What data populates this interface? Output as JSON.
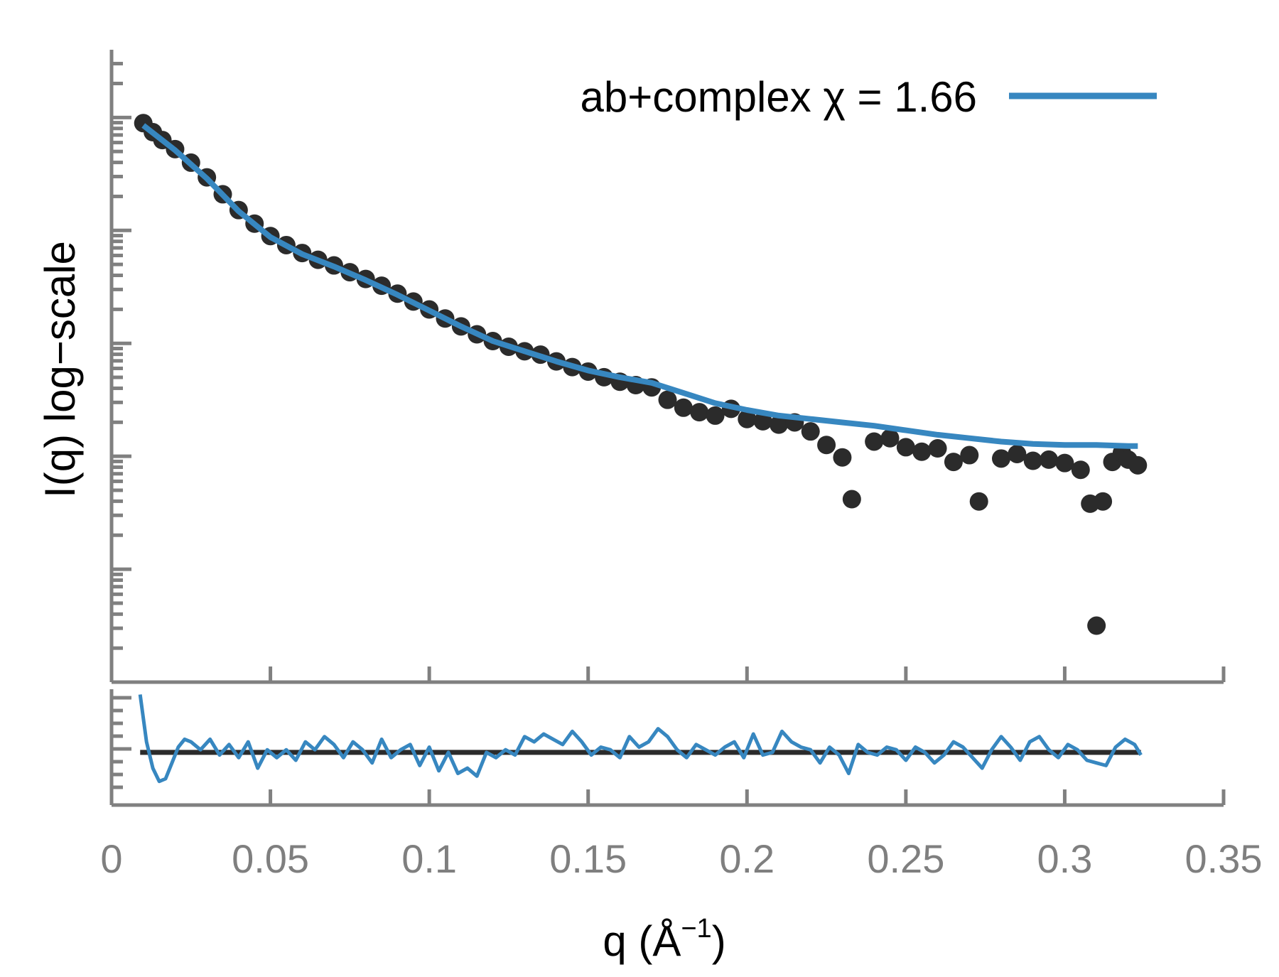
{
  "chart_data": {
    "type": "scatter",
    "title": "",
    "xlabel": "q (Å",
    "xlabel_sup": "−1",
    "xlabel_close": ")",
    "ylabel": "I(q) log−scale",
    "xlim": [
      0,
      0.35
    ],
    "x_ticks": [
      "0",
      "0.05",
      "0.1",
      "0.15",
      "0.2",
      "0.25",
      "0.3",
      "0.35"
    ],
    "x_tick_values": [
      0,
      0.05,
      0.1,
      0.15,
      0.2,
      0.25,
      0.3,
      0.35
    ],
    "y_scale": "log",
    "y_tick_labels_shown": false,
    "legend": {
      "position": "top-right",
      "label": "ab+complex χ = 1.66",
      "color": "#3787c0"
    },
    "colors": {
      "data_points": "#2b2b2b",
      "fit_line": "#3787c0",
      "axes": "#808080",
      "zero_line": "#2b2b2b"
    },
    "panels": [
      {
        "name": "intensity",
        "y_ylim_decades": [
          0,
          5.6
        ],
        "series": [
          {
            "name": "data",
            "kind": "points",
            "x": [
              0.01,
              0.013,
              0.016,
              0.02,
              0.025,
              0.03,
              0.035,
              0.04,
              0.045,
              0.05,
              0.055,
              0.06,
              0.065,
              0.07,
              0.075,
              0.08,
              0.085,
              0.09,
              0.095,
              0.1,
              0.105,
              0.11,
              0.115,
              0.12,
              0.125,
              0.13,
              0.135,
              0.14,
              0.145,
              0.15,
              0.155,
              0.16,
              0.165,
              0.17,
              0.175,
              0.18,
              0.185,
              0.19,
              0.195,
              0.2,
              0.205,
              0.21,
              0.215,
              0.22,
              0.225,
              0.23,
              0.233,
              0.24,
              0.245,
              0.25,
              0.255,
              0.26,
              0.265,
              0.27,
              0.273,
              0.28,
              0.285,
              0.29,
              0.295,
              0.3,
              0.305,
              0.308,
              0.31,
              0.312,
              0.315,
              0.318,
              0.32,
              0.323
            ],
            "y_decades": [
              4.95,
              4.87,
              4.8,
              4.72,
              4.6,
              4.47,
              4.32,
              4.18,
              4.06,
              3.95,
              3.87,
              3.8,
              3.74,
              3.69,
              3.63,
              3.57,
              3.51,
              3.44,
              3.37,
              3.3,
              3.22,
              3.15,
              3.08,
              3.02,
              2.97,
              2.93,
              2.9,
              2.84,
              2.79,
              2.75,
              2.7,
              2.66,
              2.63,
              2.61,
              2.5,
              2.43,
              2.39,
              2.36,
              2.42,
              2.33,
              2.31,
              2.28,
              2.3,
              2.22,
              2.1,
              1.99,
              1.62,
              2.13,
              2.16,
              2.08,
              2.04,
              2.07,
              1.95,
              2.01,
              1.6,
              1.98,
              2.02,
              1.96,
              1.97,
              1.94,
              1.88,
              1.58,
              0.5,
              1.6,
              1.95,
              2.03,
              1.97,
              1.92
            ]
          },
          {
            "name": "ab+complex χ = 1.66",
            "kind": "line",
            "x": [
              0.01,
              0.02,
              0.03,
              0.04,
              0.05,
              0.06,
              0.07,
              0.08,
              0.09,
              0.1,
              0.11,
              0.12,
              0.13,
              0.14,
              0.15,
              0.16,
              0.17,
              0.18,
              0.19,
              0.2,
              0.21,
              0.22,
              0.23,
              0.24,
              0.25,
              0.26,
              0.27,
              0.28,
              0.29,
              0.3,
              0.31,
              0.32,
              0.323
            ],
            "y_decades": [
              4.93,
              4.71,
              4.46,
              4.17,
              3.94,
              3.79,
              3.68,
              3.56,
              3.43,
              3.29,
              3.15,
              3.02,
              2.93,
              2.84,
              2.76,
              2.7,
              2.65,
              2.56,
              2.47,
              2.41,
              2.36,
              2.33,
              2.3,
              2.27,
              2.23,
              2.19,
              2.16,
              2.13,
              2.11,
              2.1,
              2.1,
              2.09,
              2.09
            ]
          }
        ]
      },
      {
        "name": "residuals",
        "ylim": [
          -1,
          1.2
        ],
        "zero_line": 0,
        "series": [
          {
            "name": "residual",
            "kind": "line",
            "x": [
              0.009,
              0.011,
              0.013,
              0.015,
              0.017,
              0.019,
              0.021,
              0.023,
              0.025,
              0.028,
              0.031,
              0.034,
              0.037,
              0.04,
              0.043,
              0.046,
              0.049,
              0.052,
              0.055,
              0.058,
              0.061,
              0.064,
              0.067,
              0.07,
              0.073,
              0.076,
              0.079,
              0.082,
              0.085,
              0.088,
              0.091,
              0.094,
              0.097,
              0.1,
              0.103,
              0.106,
              0.109,
              0.112,
              0.115,
              0.118,
              0.121,
              0.124,
              0.127,
              0.13,
              0.133,
              0.136,
              0.139,
              0.142,
              0.145,
              0.148,
              0.151,
              0.154,
              0.157,
              0.16,
              0.163,
              0.166,
              0.169,
              0.172,
              0.175,
              0.178,
              0.181,
              0.184,
              0.187,
              0.19,
              0.193,
              0.196,
              0.199,
              0.202,
              0.205,
              0.208,
              0.211,
              0.214,
              0.217,
              0.22,
              0.223,
              0.226,
              0.229,
              0.232,
              0.235,
              0.238,
              0.241,
              0.244,
              0.247,
              0.25,
              0.253,
              0.256,
              0.259,
              0.262,
              0.265,
              0.268,
              0.271,
              0.274,
              0.277,
              0.28,
              0.283,
              0.286,
              0.289,
              0.292,
              0.295,
              0.298,
              0.301,
              0.304,
              0.307,
              0.31,
              0.313,
              0.316,
              0.319,
              0.322,
              0.324
            ],
            "y": [
              1.1,
              0.2,
              -0.3,
              -0.55,
              -0.5,
              -0.2,
              0.1,
              0.25,
              0.2,
              0.05,
              0.25,
              -0.05,
              0.15,
              -0.1,
              0.2,
              -0.3,
              0.05,
              -0.1,
              0.05,
              -0.15,
              0.2,
              0.05,
              0.3,
              0.15,
              -0.1,
              0.2,
              0.05,
              -0.2,
              0.25,
              -0.1,
              0.05,
              0.15,
              -0.25,
              0.1,
              -0.35,
              0.0,
              -0.4,
              -0.3,
              -0.45,
              0.0,
              -0.1,
              0.05,
              -0.05,
              0.3,
              0.2,
              0.35,
              0.25,
              0.15,
              0.4,
              0.2,
              -0.05,
              0.1,
              0.05,
              -0.1,
              0.3,
              0.1,
              0.2,
              0.45,
              0.3,
              0.05,
              -0.1,
              0.15,
              0.05,
              -0.05,
              0.1,
              0.2,
              -0.1,
              0.35,
              -0.05,
              0.0,
              0.4,
              0.2,
              0.1,
              0.05,
              -0.2,
              0.1,
              -0.05,
              -0.4,
              0.15,
              0.0,
              -0.05,
              0.1,
              0.05,
              -0.15,
              0.1,
              0.0,
              -0.2,
              -0.05,
              0.2,
              0.1,
              -0.1,
              -0.3,
              0.05,
              0.3,
              0.1,
              -0.15,
              0.2,
              0.3,
              0.05,
              -0.1,
              0.15,
              0.05,
              -0.15,
              -0.2,
              -0.25,
              0.1,
              0.25,
              0.15,
              -0.05
            ]
          }
        ]
      }
    ]
  }
}
